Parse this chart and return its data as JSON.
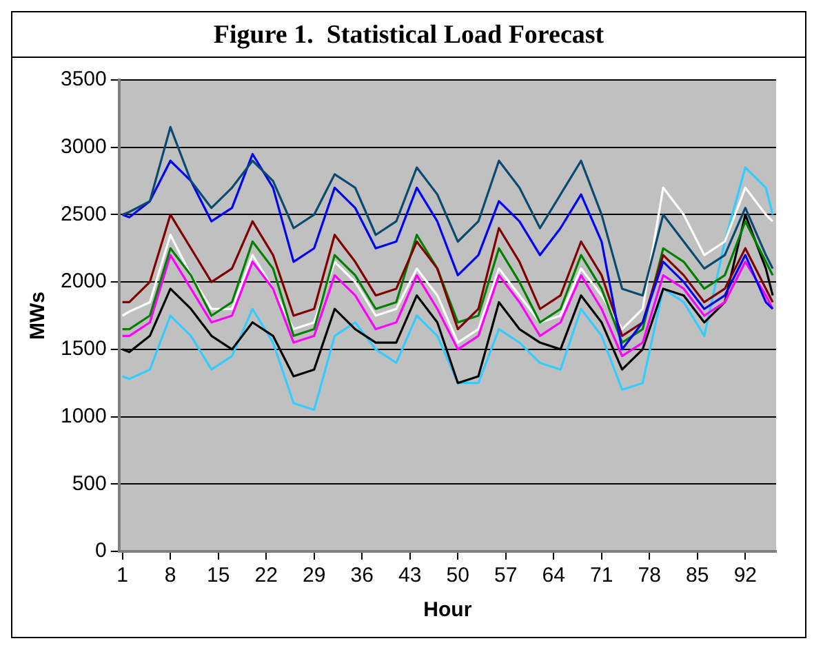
{
  "chart_data": {
    "type": "line",
    "title": "Figure 1.  Statistical Load Forecast",
    "xlabel": "Hour",
    "ylabel": "MWs",
    "x": [
      1,
      2,
      5,
      8,
      11,
      14,
      17,
      20,
      23,
      26,
      29,
      32,
      35,
      38,
      41,
      44,
      47,
      50,
      53,
      56,
      59,
      62,
      65,
      68,
      71,
      74,
      77,
      80,
      83,
      86,
      89,
      92,
      95,
      96
    ],
    "xlim": [
      0.5,
      96.5
    ],
    "xticks": [
      1,
      8,
      15,
      22,
      29,
      36,
      43,
      50,
      57,
      64,
      71,
      78,
      85,
      92
    ],
    "ylim": [
      0,
      3500
    ],
    "yticks": [
      0,
      500,
      1000,
      1500,
      2000,
      2500,
      3000,
      3500
    ],
    "grid": "y",
    "legend": false,
    "marker": "none",
    "line_style": "solid",
    "series": [
      {
        "color": "#0a4a6e",
        "values": [
          2500,
          2520,
          2600,
          3150,
          2750,
          2550,
          2700,
          2900,
          2750,
          2400,
          2500,
          2800,
          2700,
          2350,
          2450,
          2850,
          2650,
          2300,
          2450,
          2900,
          2700,
          2400,
          2650,
          2900,
          2500,
          1950,
          1900,
          2500,
          2300,
          2100,
          2200,
          2550,
          2200,
          2100
        ]
      },
      {
        "color": "#0000ff",
        "values": [
          2500,
          2480,
          2600,
          2900,
          2750,
          2450,
          2550,
          2950,
          2700,
          2150,
          2250,
          2700,
          2550,
          2250,
          2300,
          2700,
          2450,
          2050,
          2200,
          2600,
          2450,
          2200,
          2400,
          2650,
          2300,
          1500,
          1700,
          2150,
          2000,
          1800,
          1900,
          2200,
          1850,
          1800
        ]
      },
      {
        "color": "#800000",
        "values": [
          1850,
          1850,
          2000,
          2500,
          2250,
          2000,
          2100,
          2450,
          2200,
          1750,
          1800,
          2350,
          2150,
          1900,
          1950,
          2300,
          2100,
          1650,
          1800,
          2400,
          2150,
          1800,
          1900,
          2300,
          2050,
          1600,
          1700,
          2200,
          2050,
          1850,
          1950,
          2250,
          1950,
          1850
        ]
      },
      {
        "color": "#008000",
        "values": [
          1650,
          1650,
          1750,
          2250,
          2050,
          1750,
          1850,
          2300,
          2100,
          1600,
          1650,
          2200,
          2050,
          1800,
          1850,
          2350,
          2100,
          1700,
          1750,
          2250,
          2000,
          1700,
          1800,
          2200,
          1950,
          1550,
          1650,
          2250,
          2150,
          1950,
          2050,
          2450,
          2150,
          2050
        ]
      },
      {
        "color": "#ff00ff",
        "values": [
          1600,
          1600,
          1700,
          2200,
          1950,
          1700,
          1750,
          2150,
          1950,
          1550,
          1600,
          2050,
          1900,
          1650,
          1700,
          2050,
          1800,
          1500,
          1600,
          2050,
          1850,
          1600,
          1700,
          2050,
          1800,
          1450,
          1550,
          2050,
          1950,
          1750,
          1850,
          2150,
          1900,
          1800
        ]
      },
      {
        "color": "#ffffff",
        "values": [
          1750,
          1780,
          1850,
          2350,
          2050,
          1800,
          1800,
          2200,
          1950,
          1650,
          1700,
          2150,
          2000,
          1750,
          1800,
          2100,
          1900,
          1550,
          1650,
          2100,
          1900,
          1700,
          1750,
          2100,
          1900,
          1650,
          1800,
          2700,
          2500,
          2200,
          2300,
          2700,
          2500,
          2450
        ]
      },
      {
        "color": "#000000",
        "values": [
          1500,
          1480,
          1600,
          1950,
          1800,
          1600,
          1500,
          1700,
          1600,
          1300,
          1350,
          1800,
          1650,
          1550,
          1550,
          1900,
          1700,
          1250,
          1300,
          1850,
          1650,
          1550,
          1500,
          1900,
          1700,
          1350,
          1500,
          1950,
          1900,
          1700,
          1850,
          2500,
          2100,
          1900
        ]
      },
      {
        "color": "#33ccff",
        "values": [
          1300,
          1280,
          1350,
          1750,
          1600,
          1350,
          1450,
          1800,
          1550,
          1100,
          1050,
          1600,
          1700,
          1500,
          1400,
          1750,
          1600,
          1250,
          1250,
          1650,
          1550,
          1400,
          1350,
          1800,
          1600,
          1200,
          1250,
          1950,
          1850,
          1600,
          2300,
          2850,
          2700,
          2500
        ]
      }
    ]
  }
}
